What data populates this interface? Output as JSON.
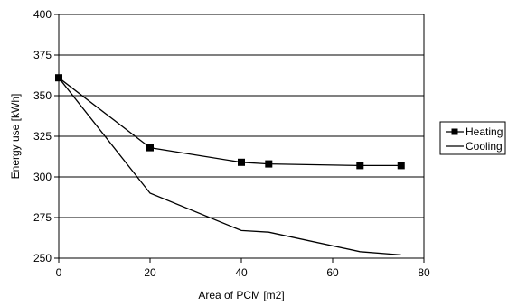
{
  "chart_data": {
    "type": "line",
    "xlabel": "Area of PCM [m2]",
    "ylabel": "Energy use [kWh]",
    "xlim": [
      0,
      80
    ],
    "ylim": [
      250,
      400
    ],
    "xticks": [
      "0",
      "20",
      "40",
      "60",
      "80"
    ],
    "yticks": [
      "250",
      "275",
      "300",
      "325",
      "350",
      "375",
      "400"
    ],
    "grid": "horizontal",
    "legend_position": "right",
    "series": [
      {
        "name": "Heating",
        "marker": "square",
        "x": [
          0,
          20,
          40,
          46,
          66,
          75
        ],
        "y": [
          361,
          318,
          309,
          308,
          307,
          307
        ]
      },
      {
        "name": "Cooling",
        "marker": "none",
        "x": [
          0,
          20,
          40,
          46,
          66,
          75
        ],
        "y": [
          361,
          290,
          267,
          266,
          254,
          252
        ]
      }
    ]
  }
}
